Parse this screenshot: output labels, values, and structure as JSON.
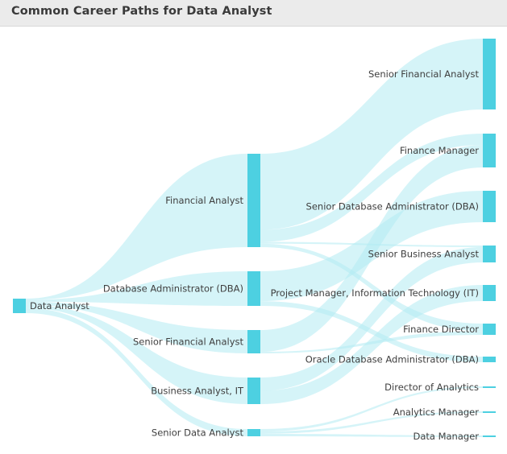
{
  "title": "Common Career Paths for Data Analyst",
  "colors": {
    "node": "#4dd0e1",
    "link": "#b2ebf2",
    "header_bg": "#ebebeb",
    "text": "#3e3e3e"
  },
  "nodes": [
    {
      "id": "da",
      "label": "Data Analyst",
      "level": 0
    },
    {
      "id": "fa",
      "label": "Financial Analyst",
      "level": 1
    },
    {
      "id": "dba",
      "label": "Database Administrator (DBA)",
      "level": 1
    },
    {
      "id": "sfa1",
      "label": "Senior Financial Analyst",
      "level": 1
    },
    {
      "id": "ba",
      "label": "Business Analyst, IT",
      "level": 1
    },
    {
      "id": "sda",
      "label": "Senior Data Analyst",
      "level": 1
    },
    {
      "id": "sfa2",
      "label": "Senior Financial Analyst",
      "level": 2
    },
    {
      "id": "fm",
      "label": "Finance Manager",
      "level": 2
    },
    {
      "id": "sdba",
      "label": "Senior Database Administrator (DBA)",
      "level": 2
    },
    {
      "id": "sba",
      "label": "Senior Business Analyst",
      "level": 2
    },
    {
      "id": "pm",
      "label": "Project Manager, Information Technology (IT)",
      "level": 2
    },
    {
      "id": "fd",
      "label": "Finance Director",
      "level": 2
    },
    {
      "id": "odba",
      "label": "Oracle Database Administrator (DBA)",
      "level": 2
    },
    {
      "id": "doa",
      "label": "Director of Analytics",
      "level": 2
    },
    {
      "id": "am",
      "label": "Analytics Manager",
      "level": 2
    },
    {
      "id": "dm",
      "label": "Data Manager",
      "level": 2
    }
  ],
  "links": [
    {
      "source": "da",
      "target": "fa",
      "value": 2
    },
    {
      "source": "da",
      "target": "dba",
      "value": 3
    },
    {
      "source": "da",
      "target": "sfa1",
      "value": 5
    },
    {
      "source": "da",
      "target": "ba",
      "value": 5
    },
    {
      "source": "da",
      "target": "sda",
      "value": 8
    },
    {
      "source": "fa",
      "target": "sfa2",
      "value": 88
    },
    {
      "source": "fa",
      "target": "fm",
      "value": 14
    },
    {
      "source": "fa",
      "target": "sba",
      "value": 2
    },
    {
      "source": "fa",
      "target": "fd",
      "value": 4
    },
    {
      "source": "dba",
      "target": "sdba",
      "value": 38
    },
    {
      "source": "dba",
      "target": "odba",
      "value": 6
    },
    {
      "source": "sfa1",
      "target": "fm",
      "value": 28
    },
    {
      "source": "sfa1",
      "target": "fd",
      "value": 2
    },
    {
      "source": "ba",
      "target": "sba",
      "value": 20
    },
    {
      "source": "ba",
      "target": "pm",
      "value": 20
    },
    {
      "source": "sda",
      "target": "doa",
      "value": 2
    },
    {
      "source": "sda",
      "target": "am",
      "value": 2
    },
    {
      "source": "sda",
      "target": "dm",
      "value": 2
    }
  ]
}
